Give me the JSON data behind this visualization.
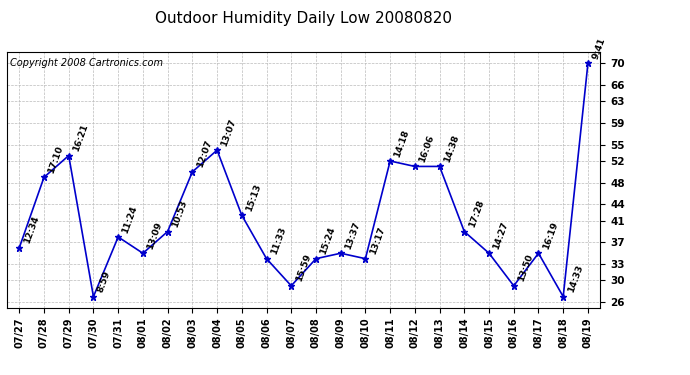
{
  "title": "Outdoor Humidity Daily Low 20080820",
  "copyright": "Copyright 2008 Cartronics.com",
  "x_labels": [
    "07/27",
    "07/28",
    "07/29",
    "07/30",
    "07/31",
    "08/01",
    "08/02",
    "08/03",
    "08/04",
    "08/05",
    "08/06",
    "08/07",
    "08/08",
    "08/09",
    "08/10",
    "08/11",
    "08/12",
    "08/13",
    "08/14",
    "08/15",
    "08/16",
    "08/17",
    "08/18",
    "08/19"
  ],
  "y_values": [
    36,
    49,
    53,
    27,
    38,
    35,
    39,
    50,
    54,
    42,
    34,
    29,
    34,
    35,
    34,
    52,
    51,
    51,
    39,
    35,
    29,
    35,
    27,
    70
  ],
  "point_labels_map": {
    "0": "12:34",
    "1": "17:10",
    "2": "16:21",
    "3": "8:59",
    "4": "11:24",
    "5": "13:09",
    "6": "10:53",
    "7": "12:07",
    "8": "13:07",
    "9": "15:13",
    "10": "11:33",
    "11": "15:59",
    "12": "15:24",
    "13": "13:37",
    "14": "13:17",
    "15": "14:18",
    "16": "16:06",
    "17": "14:38",
    "18": "17:28",
    "19": "14:27",
    "20": "13:50",
    "21": "16:19",
    "22": "14:33",
    "23": "9:41"
  },
  "ylim": [
    25,
    72
  ],
  "yticks": [
    26,
    30,
    33,
    37,
    41,
    44,
    48,
    52,
    55,
    59,
    63,
    66,
    70
  ],
  "line_color": "#0000cc",
  "marker_color": "#0000cc",
  "background_color": "#ffffff",
  "grid_color": "#bbbbbb",
  "title_fontsize": 11,
  "copyright_fontsize": 7
}
